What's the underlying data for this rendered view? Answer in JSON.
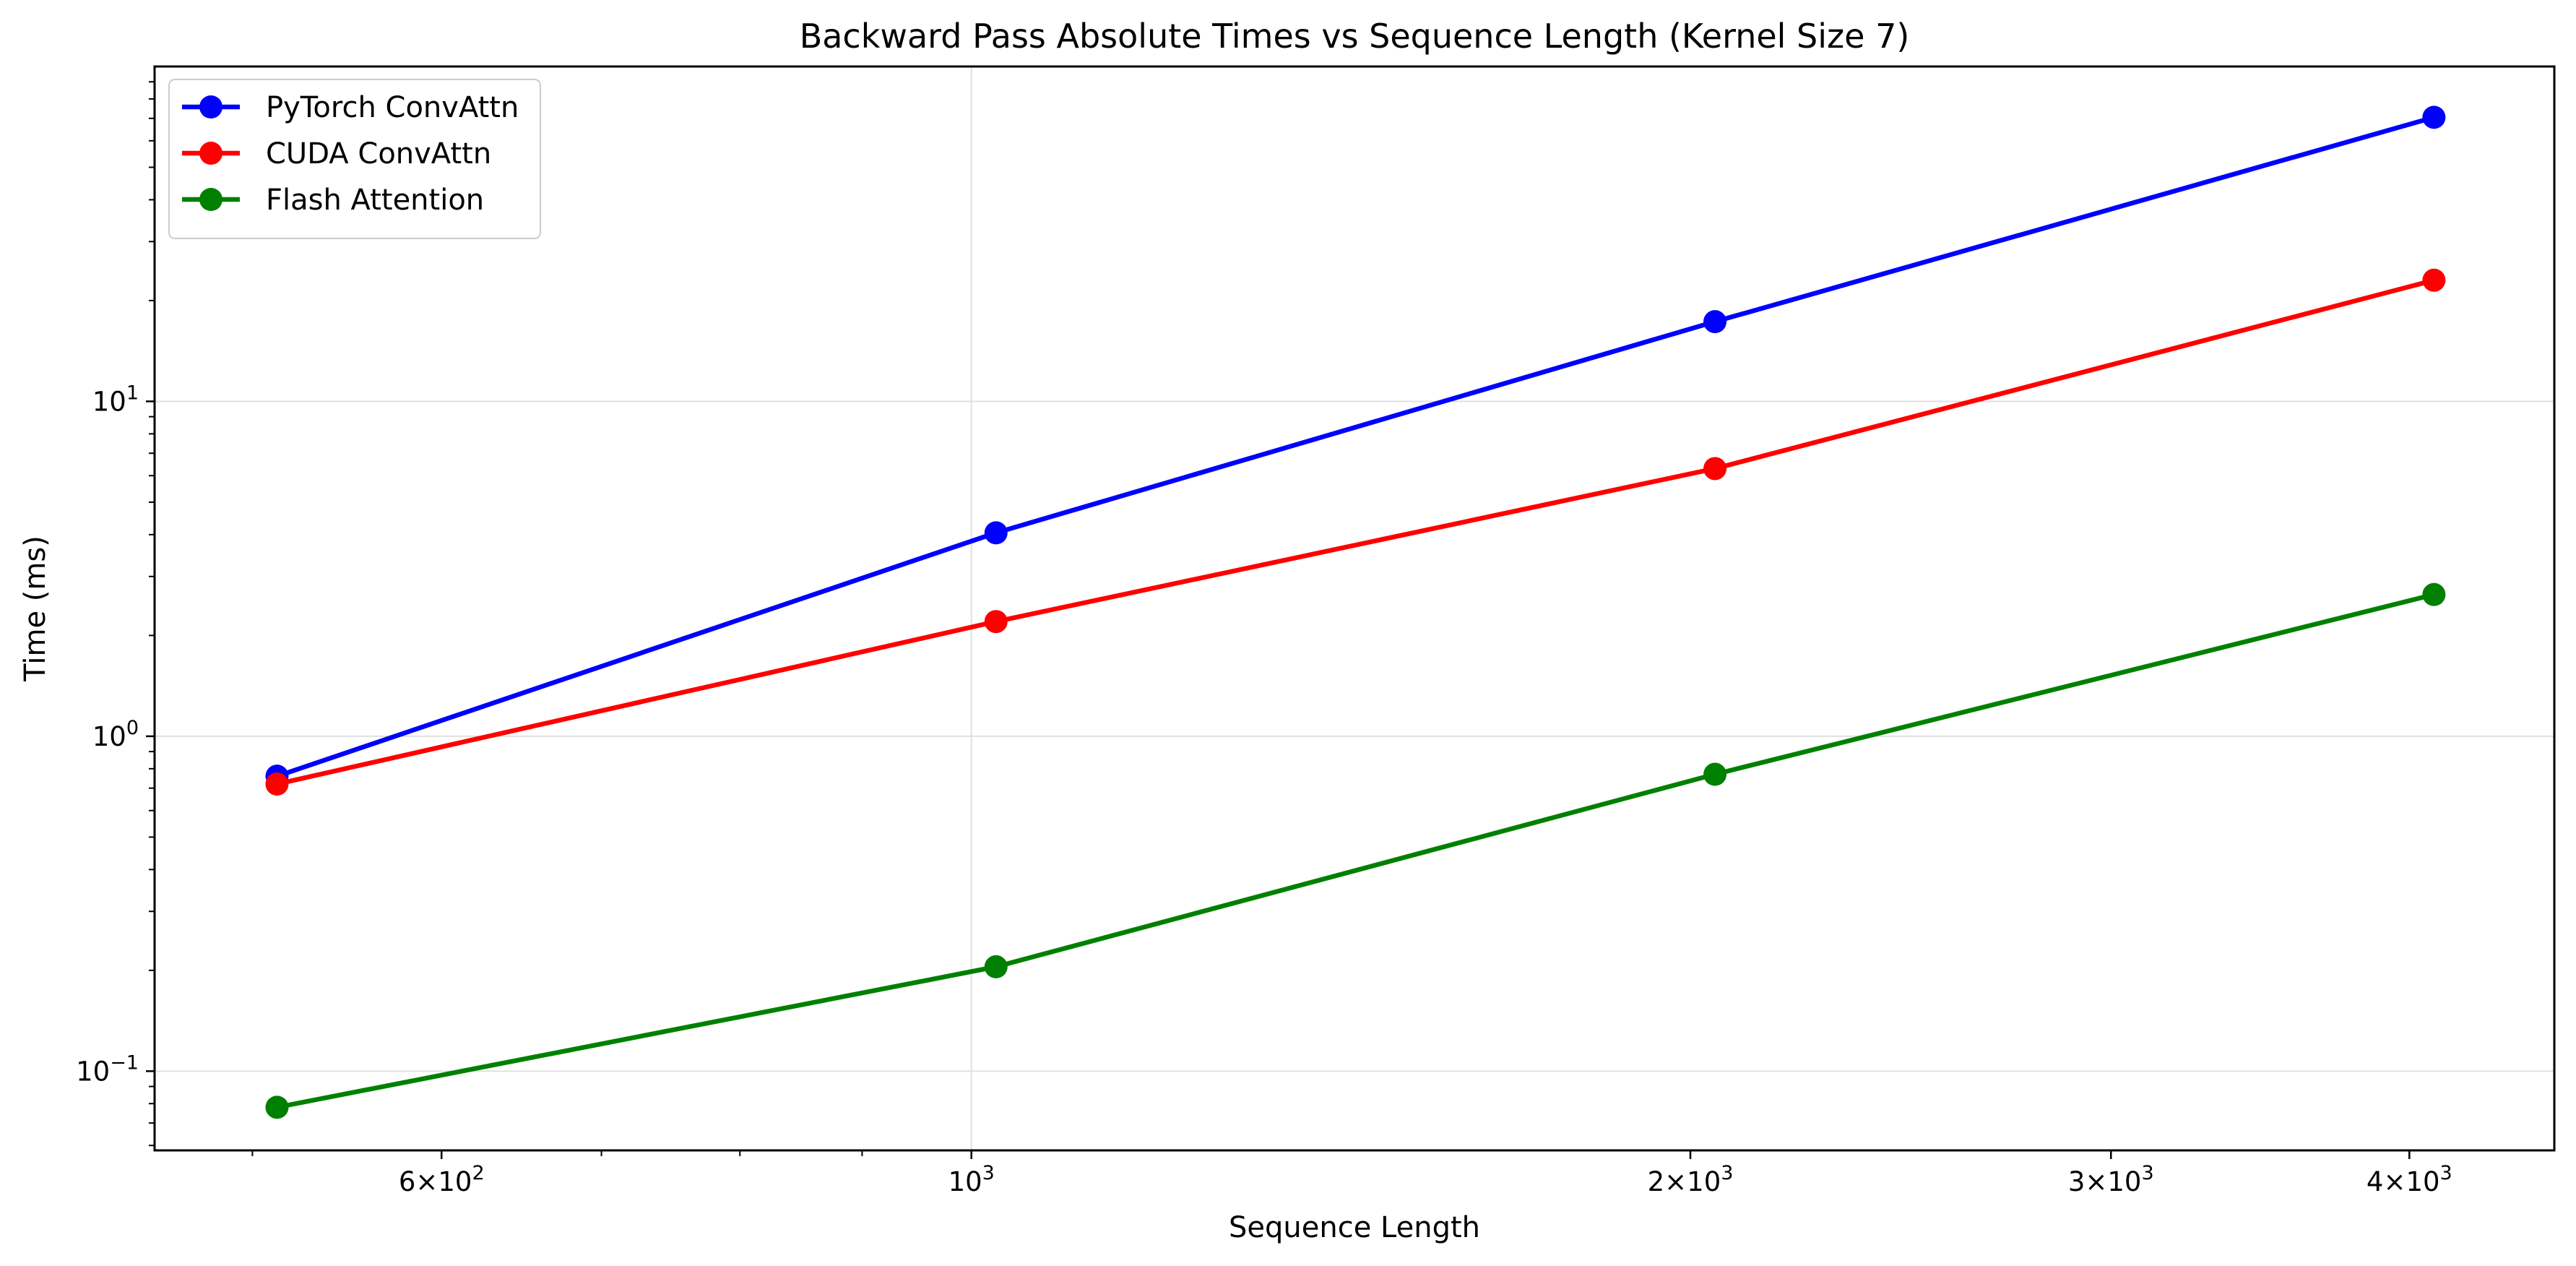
{
  "chart_data": {
    "type": "line",
    "title": "Backward Pass Absolute Times vs Sequence Length (Kernel Size 7)",
    "xlabel": "Sequence Length",
    "ylabel": "Time (ms)",
    "x_scale": "log",
    "y_scale": "log",
    "xlim": [
      455,
      4600
    ],
    "ylim": [
      0.058,
      100
    ],
    "grid": true,
    "legend_position": "top-left",
    "x": [
      512,
      1024,
      2048,
      4096
    ],
    "series": [
      {
        "name": "PyTorch ConvAttn",
        "color": "#0000ff",
        "values": [
          0.76,
          4.05,
          17.3,
          70.5
        ]
      },
      {
        "name": "CUDA ConvAttn",
        "color": "#ff0000",
        "values": [
          0.72,
          2.2,
          6.3,
          23.0
        ]
      },
      {
        "name": "Flash Attention",
        "color": "#008000",
        "values": [
          0.078,
          0.205,
          0.77,
          2.65
        ]
      }
    ],
    "x_ticks": [
      {
        "value": 600,
        "mantissa": "6",
        "exp": "2"
      },
      {
        "value": 1000,
        "mantissa": "",
        "exp": "3"
      },
      {
        "value": 2000,
        "mantissa": "2",
        "exp": "3"
      },
      {
        "value": 3000,
        "mantissa": "3",
        "exp": "3"
      },
      {
        "value": 4000,
        "mantissa": "4",
        "exp": "3"
      }
    ],
    "y_ticks": [
      {
        "value": 0.1,
        "exp": "−1"
      },
      {
        "value": 1,
        "exp": "0"
      },
      {
        "value": 10,
        "exp": "1"
      }
    ]
  }
}
